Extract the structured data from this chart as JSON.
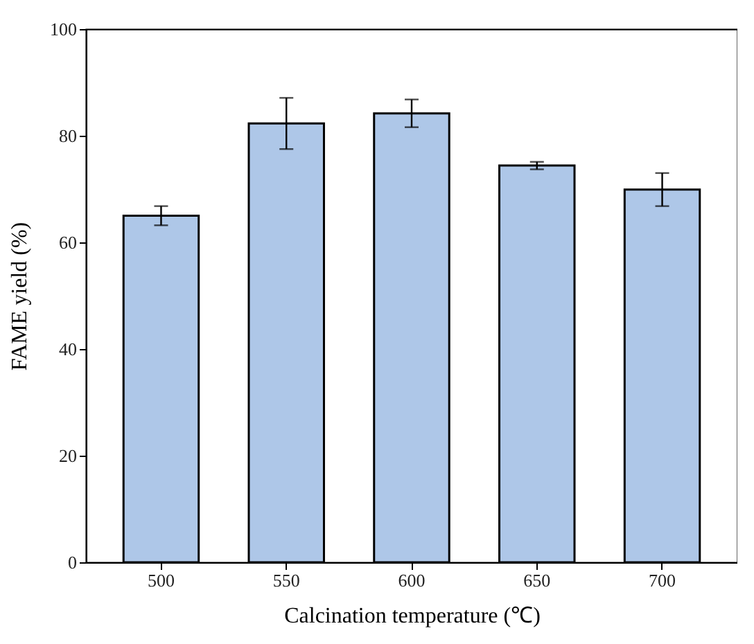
{
  "chart_data": {
    "type": "bar",
    "xlabel": "Calcination temperature (℃)",
    "ylabel": "FAME yield (%)",
    "categories": [
      "500",
      "550",
      "600",
      "650",
      "700"
    ],
    "values": [
      65,
      82.3,
      84.2,
      74.4,
      69.9
    ],
    "errors": [
      1.8,
      4.8,
      2.6,
      0.7,
      3.1
    ],
    "color": "#aec7e8",
    "ylim": [
      0,
      100
    ],
    "yticks": [
      0,
      20,
      40,
      60,
      80,
      100
    ]
  }
}
